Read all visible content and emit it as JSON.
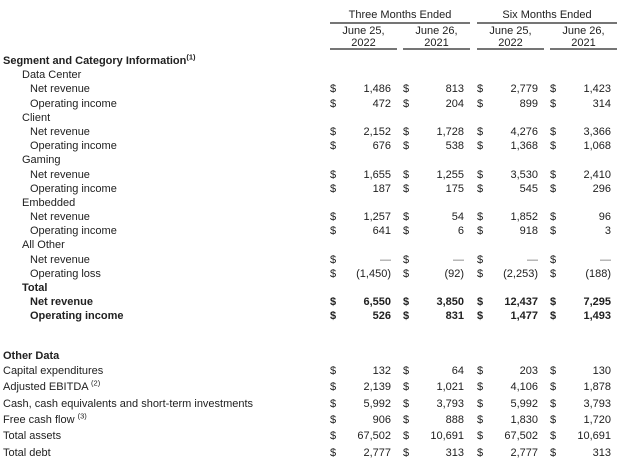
{
  "document": {
    "type": "financial-results-table",
    "currency": "$",
    "em_dash": "—"
  },
  "header": {
    "period_groups": [
      {
        "label": "Three Months Ended"
      },
      {
        "label": "Six Months Ended"
      }
    ],
    "date_columns": [
      {
        "line1": "June 25,",
        "line2": "2022"
      },
      {
        "line1": "June 26,",
        "line2": "2021"
      },
      {
        "line1": "June 25,",
        "line2": "2022"
      },
      {
        "line1": "June 26,",
        "line2": "2021"
      }
    ]
  },
  "table": {
    "rows": [
      {
        "label": "Segment and Category Information",
        "sup": "(1)",
        "bold": true,
        "indent": 0
      },
      {
        "label": "Data Center",
        "indent": 1
      },
      {
        "label": "Net revenue",
        "indent": 2,
        "values": [
          "1,486",
          "813",
          "2,779",
          "1,423"
        ]
      },
      {
        "label": "Operating income",
        "indent": 2,
        "values": [
          "472",
          "204",
          "899",
          "314"
        ]
      },
      {
        "label": "Client",
        "indent": 1
      },
      {
        "label": "Net revenue",
        "indent": 2,
        "values": [
          "2,152",
          "1,728",
          "4,276",
          "3,366"
        ]
      },
      {
        "label": "Operating income",
        "indent": 2,
        "values": [
          "676",
          "538",
          "1,368",
          "1,068"
        ]
      },
      {
        "label": "Gaming",
        "indent": 1
      },
      {
        "label": "Net revenue",
        "indent": 2,
        "values": [
          "1,655",
          "1,255",
          "3,530",
          "2,410"
        ]
      },
      {
        "label": "Operating income",
        "indent": 2,
        "values": [
          "187",
          "175",
          "545",
          "296"
        ]
      },
      {
        "label": "Embedded",
        "indent": 1
      },
      {
        "label": "Net revenue",
        "indent": 2,
        "values": [
          "1,257",
          "54",
          "1,852",
          "96"
        ]
      },
      {
        "label": "Operating income",
        "indent": 2,
        "values": [
          "641",
          "6",
          "918",
          "3"
        ]
      },
      {
        "label": "All Other",
        "indent": 1
      },
      {
        "label": "Net revenue",
        "indent": 2,
        "values": [
          "—",
          "—",
          "—",
          "—"
        ]
      },
      {
        "label": "Operating loss",
        "indent": 2,
        "values": [
          "(1,450)",
          "(92)",
          "(2,253)",
          "(188)"
        ]
      },
      {
        "label": "Total",
        "indent": 1,
        "bold": true
      },
      {
        "label": "Net revenue",
        "indent": 2,
        "bold": true,
        "values": [
          "6,550",
          "3,850",
          "12,437",
          "7,295"
        ]
      },
      {
        "label": "Operating income",
        "indent": 2,
        "bold": true,
        "values": [
          "526",
          "831",
          "1,477",
          "1,493"
        ]
      },
      {
        "spacer": true
      },
      {
        "label": "Other Data",
        "indent": 0,
        "bold": true
      },
      {
        "label": "Capital expenditures",
        "indent": 0,
        "tall": true,
        "values": [
          "132",
          "64",
          "203",
          "130"
        ]
      },
      {
        "label": "Adjusted EBITDA ",
        "sup": "(2)",
        "indent": 0,
        "tall": true,
        "values": [
          "2,139",
          "1,021",
          "4,106",
          "1,878"
        ]
      },
      {
        "label": "Cash, cash equivalents and short-term investments",
        "indent": 0,
        "tall": true,
        "values": [
          "5,992",
          "3,793",
          "5,992",
          "3,793"
        ]
      },
      {
        "label": "Free cash flow ",
        "sup": "(3)",
        "indent": 0,
        "tall": true,
        "values": [
          "906",
          "888",
          "1,830",
          "1,720"
        ]
      },
      {
        "label": "Total assets",
        "indent": 0,
        "tall": true,
        "values": [
          "67,502",
          "10,691",
          "67,502",
          "10,691"
        ]
      },
      {
        "label": "Total debt",
        "indent": 0,
        "tall": true,
        "values": [
          "2,777",
          "313",
          "2,777",
          "313"
        ]
      }
    ]
  }
}
